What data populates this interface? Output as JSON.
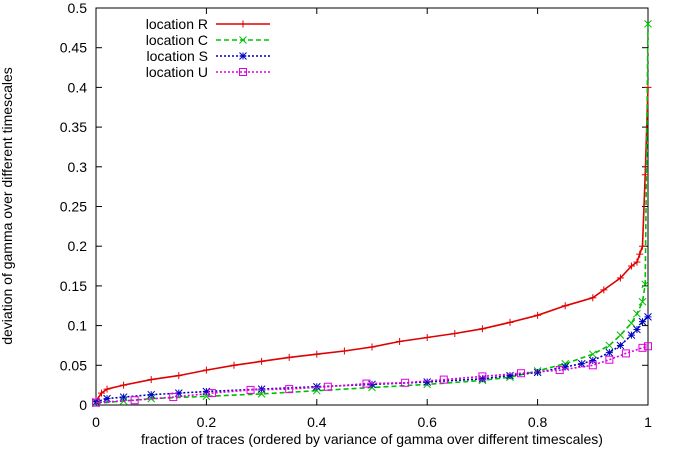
{
  "chart_data": {
    "type": "line",
    "title": "",
    "xlabel": "fraction of traces (ordered by variance of gamma over different timescales)",
    "ylabel": "deviation of gamma over different timescales",
    "xlim": [
      0,
      1
    ],
    "ylim": [
      0,
      0.5
    ],
    "x_ticks": [
      "0",
      "0.2",
      "0.4",
      "0.6",
      "0.8",
      "1"
    ],
    "y_ticks": [
      "0",
      "0.05",
      "0.1",
      "0.15",
      "0.2",
      "0.25",
      "0.3",
      "0.35",
      "0.4",
      "0.45",
      "0.5"
    ],
    "grid": false,
    "legend_position": "top-left",
    "series": [
      {
        "name": "location R",
        "color": "#e00000",
        "marker": "plus",
        "line_style": "solid",
        "points": [
          [
            0,
            0.005
          ],
          [
            0.01,
            0.015
          ],
          [
            0.02,
            0.02
          ],
          [
            0.05,
            0.025
          ],
          [
            0.1,
            0.032
          ],
          [
            0.15,
            0.037
          ],
          [
            0.2,
            0.044
          ],
          [
            0.25,
            0.05
          ],
          [
            0.3,
            0.055
          ],
          [
            0.35,
            0.06
          ],
          [
            0.4,
            0.064
          ],
          [
            0.45,
            0.068
          ],
          [
            0.5,
            0.073
          ],
          [
            0.55,
            0.08
          ],
          [
            0.6,
            0.085
          ],
          [
            0.65,
            0.09
          ],
          [
            0.7,
            0.096
          ],
          [
            0.75,
            0.104
          ],
          [
            0.8,
            0.113
          ],
          [
            0.85,
            0.125
          ],
          [
            0.9,
            0.135
          ],
          [
            0.92,
            0.145
          ],
          [
            0.95,
            0.16
          ],
          [
            0.97,
            0.175
          ],
          [
            0.98,
            0.18
          ],
          [
            0.985,
            0.19
          ],
          [
            0.99,
            0.2
          ],
          [
            0.995,
            0.29
          ],
          [
            1.0,
            0.4
          ]
        ]
      },
      {
        "name": "location C",
        "color": "#00c000",
        "marker": "cross",
        "line_style": "dashed",
        "points": [
          [
            0,
            0.002
          ],
          [
            0.05,
            0.005
          ],
          [
            0.1,
            0.008
          ],
          [
            0.2,
            0.011
          ],
          [
            0.3,
            0.014
          ],
          [
            0.4,
            0.018
          ],
          [
            0.5,
            0.022
          ],
          [
            0.6,
            0.026
          ],
          [
            0.7,
            0.031
          ],
          [
            0.75,
            0.035
          ],
          [
            0.8,
            0.043
          ],
          [
            0.85,
            0.052
          ],
          [
            0.9,
            0.064
          ],
          [
            0.93,
            0.075
          ],
          [
            0.95,
            0.088
          ],
          [
            0.97,
            0.103
          ],
          [
            0.98,
            0.115
          ],
          [
            0.99,
            0.13
          ],
          [
            0.995,
            0.152
          ],
          [
            1.0,
            0.48
          ]
        ]
      },
      {
        "name": "location S",
        "color": "#0000c0",
        "marker": "star",
        "line_style": "dotted",
        "points": [
          [
            0,
            0.004
          ],
          [
            0.02,
            0.008
          ],
          [
            0.05,
            0.01
          ],
          [
            0.1,
            0.013
          ],
          [
            0.15,
            0.015
          ],
          [
            0.2,
            0.017
          ],
          [
            0.3,
            0.02
          ],
          [
            0.4,
            0.023
          ],
          [
            0.5,
            0.026
          ],
          [
            0.6,
            0.029
          ],
          [
            0.7,
            0.033
          ],
          [
            0.75,
            0.037
          ],
          [
            0.8,
            0.041
          ],
          [
            0.85,
            0.048
          ],
          [
            0.88,
            0.052
          ],
          [
            0.9,
            0.056
          ],
          [
            0.93,
            0.066
          ],
          [
            0.95,
            0.075
          ],
          [
            0.97,
            0.088
          ],
          [
            0.98,
            0.095
          ],
          [
            0.99,
            0.105
          ],
          [
            1.0,
            0.111
          ]
        ]
      },
      {
        "name": "location U",
        "color": "#e000e0",
        "marker": "square",
        "line_style": "dotted",
        "points": [
          [
            0,
            0.003
          ],
          [
            0.07,
            0.006
          ],
          [
            0.14,
            0.01
          ],
          [
            0.21,
            0.015
          ],
          [
            0.28,
            0.019
          ],
          [
            0.35,
            0.02
          ],
          [
            0.42,
            0.023
          ],
          [
            0.49,
            0.027
          ],
          [
            0.56,
            0.028
          ],
          [
            0.63,
            0.032
          ],
          [
            0.7,
            0.036
          ],
          [
            0.77,
            0.04
          ],
          [
            0.84,
            0.044
          ],
          [
            0.9,
            0.05
          ],
          [
            0.93,
            0.057
          ],
          [
            0.96,
            0.065
          ],
          [
            0.99,
            0.072
          ],
          [
            1.0,
            0.074
          ]
        ]
      }
    ]
  }
}
